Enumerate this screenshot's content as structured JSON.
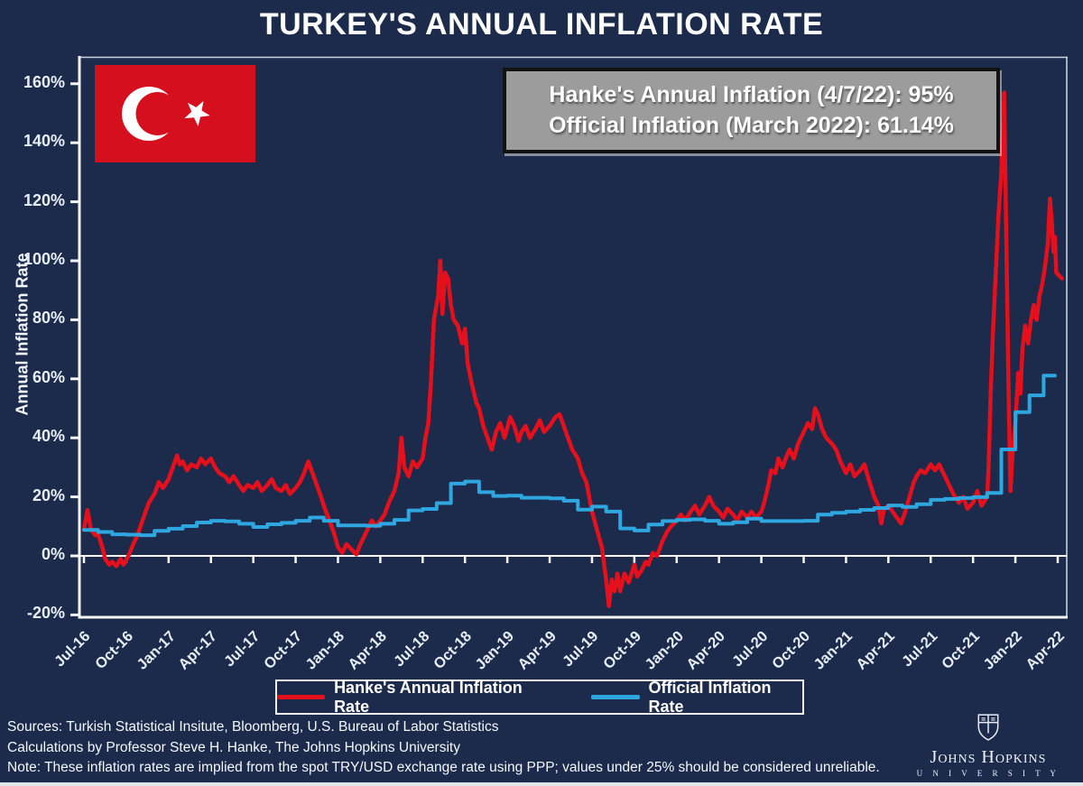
{
  "page": {
    "title": "TURKEY'S ANNUAL INFLATION RATE",
    "background": "#1c2b4b"
  },
  "annotation_box": {
    "line1": "Hanke's Annual Inflation (4/7/22): 95%",
    "line2": "Official Inflation (March 2022): 61.14%",
    "bg": "#9c9c9c"
  },
  "flag": {
    "label": "turkey-flag",
    "red": "#d60f1f",
    "white": "#ffffff"
  },
  "legend": {
    "items": [
      {
        "label": "Hanke's Annual Inflation Rate",
        "color": "#e5101c"
      },
      {
        "label": "Official Inflation Rate",
        "color": "#2ea7e0"
      }
    ]
  },
  "notes": {
    "line1": "Sources: Turkish Statistical Insitute, Bloomberg, U.S. Bureau of Labor Statistics",
    "line2": "Calculations by Professor Steve H. Hanke, The Johns Hopkins University",
    "line3": "Note: These inflation rates are implied from the spot TRY/USD exchange rate using PPP; values under 25% should be considered unreliable."
  },
  "logo": {
    "name": "Johns Hopkins",
    "university": "U N I V E R S I T Y"
  },
  "chart_data": {
    "type": "line",
    "title": "TURKEY'S ANNUAL INFLATION RATE",
    "xlabel": "",
    "ylabel": "Annual Inflation Rate",
    "ylim": [
      -20,
      160
    ],
    "grid": false,
    "zero_line": true,
    "legend_position": "bottom",
    "y_tick_values": [
      160,
      140,
      120,
      100,
      80,
      60,
      40,
      20,
      0,
      -20
    ],
    "y_tick_labels": [
      "160%",
      "140%",
      "120%",
      "100%",
      "80%",
      "60%",
      "40%",
      "20%",
      "0%",
      "-20%"
    ],
    "x_tick_labels": [
      "Jul-16",
      "Oct-16",
      "Jan-17",
      "Apr-17",
      "Jul-17",
      "Oct-17",
      "Jan-18",
      "Apr-18",
      "Jul-18",
      "Oct-18",
      "Jan-19",
      "Apr-19",
      "Jul-19",
      "Oct-19",
      "Jan-20",
      "Apr-20",
      "Jul-20",
      "Oct-20",
      "Jan-21",
      "Apr-21",
      "Jul-21",
      "Oct-21",
      "Jan-22",
      "Apr-22"
    ],
    "x_tick_month_offsets": [
      0,
      3,
      6,
      9,
      12,
      15,
      18,
      21,
      24,
      27,
      30,
      33,
      36,
      39,
      42,
      45,
      48,
      51,
      54,
      57,
      60,
      63,
      66,
      69
    ],
    "x_unit": "months since Jul-2016",
    "series": [
      {
        "name": "Hanke's Annual Inflation Rate",
        "color": "#e5101c",
        "style": "line",
        "points": [
          [
            0,
            9
          ],
          [
            0.25,
            15.5
          ],
          [
            0.5,
            9
          ],
          [
            0.8,
            7
          ],
          [
            1,
            7.5
          ],
          [
            1.3,
            3
          ],
          [
            1.5,
            -1
          ],
          [
            1.8,
            -3
          ],
          [
            2,
            -2
          ],
          [
            2.3,
            -3.5
          ],
          [
            2.6,
            -1
          ],
          [
            2.8,
            -3
          ],
          [
            3,
            -1.5
          ],
          [
            3.2,
            0.5
          ],
          [
            3.5,
            4
          ],
          [
            3.8,
            7
          ],
          [
            4,
            10
          ],
          [
            4.3,
            14
          ],
          [
            4.6,
            18
          ],
          [
            5,
            21
          ],
          [
            5.3,
            25
          ],
          [
            5.6,
            23
          ],
          [
            6,
            26
          ],
          [
            6.3,
            30
          ],
          [
            6.6,
            34
          ],
          [
            6.8,
            31
          ],
          [
            7,
            32
          ],
          [
            7.3,
            29
          ],
          [
            7.6,
            31
          ],
          [
            8,
            30
          ],
          [
            8.3,
            33
          ],
          [
            8.6,
            31
          ],
          [
            9,
            33
          ],
          [
            9.3,
            30
          ],
          [
            9.6,
            28
          ],
          [
            10,
            27
          ],
          [
            10.3,
            25
          ],
          [
            10.6,
            27
          ],
          [
            11,
            24
          ],
          [
            11.3,
            22
          ],
          [
            11.6,
            24
          ],
          [
            12,
            23
          ],
          [
            12.3,
            25
          ],
          [
            12.6,
            22
          ],
          [
            13,
            24
          ],
          [
            13.3,
            26
          ],
          [
            13.6,
            23
          ],
          [
            14,
            22
          ],
          [
            14.3,
            24
          ],
          [
            14.6,
            21
          ],
          [
            15,
            23
          ],
          [
            15.3,
            25
          ],
          [
            15.6,
            28
          ],
          [
            15.9,
            32
          ],
          [
            16.2,
            28
          ],
          [
            16.5,
            24
          ],
          [
            16.8,
            20
          ],
          [
            17,
            17
          ],
          [
            17.4,
            12
          ],
          [
            17.7,
            8
          ],
          [
            18,
            3
          ],
          [
            18.3,
            1
          ],
          [
            18.6,
            4
          ],
          [
            19,
            2
          ],
          [
            19.3,
            0.5
          ],
          [
            19.6,
            4
          ],
          [
            20,
            8
          ],
          [
            20.4,
            12
          ],
          [
            20.7,
            10
          ],
          [
            21,
            12
          ],
          [
            21.3,
            14
          ],
          [
            21.6,
            18
          ],
          [
            22,
            22
          ],
          [
            22.3,
            28
          ],
          [
            22.5,
            40
          ],
          [
            22.7,
            30
          ],
          [
            23,
            27
          ],
          [
            23.3,
            32
          ],
          [
            23.6,
            30
          ],
          [
            24,
            33
          ],
          [
            24.2,
            40
          ],
          [
            24.4,
            45
          ],
          [
            24.6,
            60
          ],
          [
            24.8,
            80
          ],
          [
            25.1,
            88
          ],
          [
            25.25,
            100
          ],
          [
            25.4,
            82
          ],
          [
            25.6,
            96
          ],
          [
            25.8,
            94
          ],
          [
            26,
            85
          ],
          [
            26.2,
            80
          ],
          [
            26.5,
            78
          ],
          [
            26.8,
            72
          ],
          [
            27,
            77
          ],
          [
            27.2,
            65
          ],
          [
            27.5,
            58
          ],
          [
            27.8,
            52
          ],
          [
            28,
            50
          ],
          [
            28.3,
            44
          ],
          [
            28.6,
            40
          ],
          [
            28.9,
            36
          ],
          [
            29.2,
            42
          ],
          [
            29.5,
            45
          ],
          [
            29.8,
            40
          ],
          [
            30.2,
            47
          ],
          [
            30.5,
            44
          ],
          [
            30.8,
            39
          ],
          [
            31,
            42
          ],
          [
            31.3,
            44
          ],
          [
            31.6,
            40
          ],
          [
            32,
            43
          ],
          [
            32.3,
            46
          ],
          [
            32.6,
            42
          ],
          [
            33,
            44
          ],
          [
            33.4,
            47
          ],
          [
            33.7,
            48
          ],
          [
            34,
            44
          ],
          [
            34.3,
            40
          ],
          [
            34.6,
            36
          ],
          [
            35,
            33
          ],
          [
            35.3,
            28
          ],
          [
            35.6,
            25
          ],
          [
            36,
            15
          ],
          [
            36.4,
            8
          ],
          [
            36.7,
            3
          ],
          [
            37,
            -8
          ],
          [
            37.2,
            -17
          ],
          [
            37.4,
            -8
          ],
          [
            37.6,
            -12
          ],
          [
            37.8,
            -6
          ],
          [
            38,
            -12
          ],
          [
            38.3,
            -6
          ],
          [
            38.6,
            -9
          ],
          [
            39,
            -3
          ],
          [
            39.2,
            -7
          ],
          [
            39.5,
            -5
          ],
          [
            39.8,
            -2
          ],
          [
            40,
            -3
          ],
          [
            40.3,
            1
          ],
          [
            40.6,
            0
          ],
          [
            41,
            5
          ],
          [
            41.3,
            8
          ],
          [
            41.6,
            10
          ],
          [
            42,
            12
          ],
          [
            42.3,
            14
          ],
          [
            42.6,
            12
          ],
          [
            43,
            15
          ],
          [
            43.3,
            17
          ],
          [
            43.6,
            14
          ],
          [
            44,
            17
          ],
          [
            44.3,
            20
          ],
          [
            44.6,
            17
          ],
          [
            45,
            15
          ],
          [
            45.3,
            13
          ],
          [
            45.6,
            16
          ],
          [
            46,
            14
          ],
          [
            46.3,
            12
          ],
          [
            46.6,
            15
          ],
          [
            47,
            13
          ],
          [
            47.3,
            15
          ],
          [
            47.6,
            13
          ],
          [
            48,
            15
          ],
          [
            48.2,
            18
          ],
          [
            48.5,
            24
          ],
          [
            48.7,
            29
          ],
          [
            49,
            28
          ],
          [
            49.2,
            33
          ],
          [
            49.5,
            30
          ],
          [
            49.8,
            34
          ],
          [
            50,
            36
          ],
          [
            50.3,
            33
          ],
          [
            50.6,
            38
          ],
          [
            51,
            42
          ],
          [
            51.3,
            45
          ],
          [
            51.6,
            43
          ],
          [
            51.8,
            50
          ],
          [
            52,
            48
          ],
          [
            52.3,
            43
          ],
          [
            52.6,
            40
          ],
          [
            53,
            38
          ],
          [
            53.3,
            36
          ],
          [
            53.6,
            32
          ],
          [
            54,
            28
          ],
          [
            54.3,
            31
          ],
          [
            54.6,
            27
          ],
          [
            55,
            29
          ],
          [
            55.3,
            31
          ],
          [
            55.6,
            26
          ],
          [
            56,
            20
          ],
          [
            56.3,
            17
          ],
          [
            56.5,
            11
          ],
          [
            56.7,
            16
          ],
          [
            57,
            17
          ],
          [
            57.3,
            15
          ],
          [
            57.6,
            13
          ],
          [
            57.9,
            11
          ],
          [
            58.2,
            15
          ],
          [
            58.5,
            20
          ],
          [
            58.8,
            25
          ],
          [
            59,
            27
          ],
          [
            59.3,
            29
          ],
          [
            59.6,
            28
          ],
          [
            60,
            31
          ],
          [
            60.3,
            29
          ],
          [
            60.6,
            31
          ],
          [
            61,
            27
          ],
          [
            61.3,
            24
          ],
          [
            61.6,
            21
          ],
          [
            62,
            18
          ],
          [
            62.3,
            20
          ],
          [
            62.6,
            16
          ],
          [
            63,
            18
          ],
          [
            63.3,
            22
          ],
          [
            63.6,
            17
          ],
          [
            64,
            20
          ],
          [
            64.1,
            30
          ],
          [
            64.25,
            55
          ],
          [
            64.4,
            75
          ],
          [
            64.6,
            95
          ],
          [
            64.8,
            115
          ],
          [
            65,
            130
          ],
          [
            65.2,
            157
          ],
          [
            65.35,
            110
          ],
          [
            65.5,
            60
          ],
          [
            65.65,
            22
          ],
          [
            65.8,
            35
          ],
          [
            66,
            45
          ],
          [
            66.2,
            62
          ],
          [
            66.35,
            55
          ],
          [
            66.5,
            70
          ],
          [
            66.7,
            78
          ],
          [
            66.9,
            72
          ],
          [
            67.1,
            80
          ],
          [
            67.3,
            85
          ],
          [
            67.5,
            80
          ],
          [
            67.7,
            88
          ],
          [
            67.9,
            92
          ],
          [
            68.1,
            98
          ],
          [
            68.3,
            106
          ],
          [
            68.45,
            121
          ],
          [
            68.6,
            112
          ],
          [
            68.7,
            103
          ],
          [
            68.8,
            108
          ],
          [
            68.9,
            96
          ],
          [
            69.3,
            94
          ]
        ]
      },
      {
        "name": "Official Inflation Rate",
        "color": "#2ea7e0",
        "style": "step",
        "start_month": 0,
        "monthly_values": [
          8.8,
          8.1,
          7.3,
          7.2,
          7.0,
          8.5,
          9.2,
          10.1,
          11.3,
          11.9,
          11.7,
          10.9,
          9.8,
          10.7,
          11.2,
          11.9,
          13.0,
          11.9,
          10.3,
          10.3,
          10.2,
          10.9,
          12.2,
          15.4,
          15.9,
          17.9,
          24.5,
          25.2,
          21.6,
          20.3,
          20.4,
          19.7,
          19.7,
          19.5,
          18.7,
          15.7,
          16.7,
          15.0,
          9.3,
          8.6,
          10.6,
          11.8,
          12.2,
          12.4,
          11.9,
          10.9,
          11.4,
          12.6,
          11.8,
          11.8,
          11.8,
          11.9,
          14.0,
          14.6,
          15.0,
          15.6,
          16.2,
          17.1,
          16.6,
          17.5,
          19.0,
          19.3,
          19.6,
          19.9,
          21.3,
          36.1,
          48.7,
          54.4,
          61.1
        ]
      }
    ]
  }
}
